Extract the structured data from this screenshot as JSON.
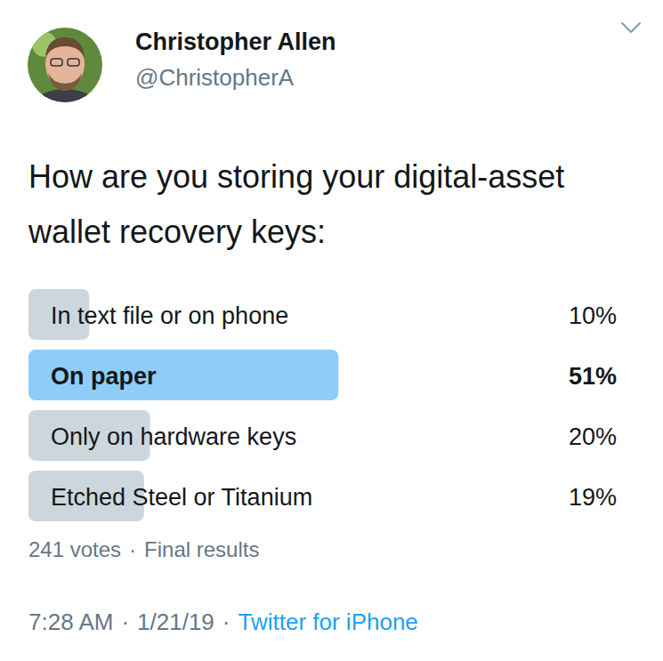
{
  "header": {
    "name": "Christopher Allen",
    "handle": "@ChristopherA"
  },
  "chart_data": {
    "type": "bar",
    "orientation": "horizontal",
    "title": "How are you storing your digital-asset wallet recovery keys:",
    "categories": [
      "In text file or on phone",
      "On paper",
      "Only on hardware keys",
      "Etched Steel or Titanium"
    ],
    "values": [
      10,
      51,
      20,
      19
    ],
    "value_labels": [
      "10%",
      "51%",
      "20%",
      "19%"
    ],
    "colors": [
      "#ccd6dd",
      "#8ecdf8",
      "#ccd6dd",
      "#ccd6dd"
    ],
    "xlim": [
      0,
      100
    ],
    "data_labels": true,
    "tick_labels": false,
    "grid": false
  },
  "poll_footer": {
    "votes": "241 votes",
    "status": "Final results"
  },
  "meta": {
    "time": "7:28 AM",
    "date": "1/21/19",
    "source": "Twitter for iPhone",
    "separator": "·"
  }
}
